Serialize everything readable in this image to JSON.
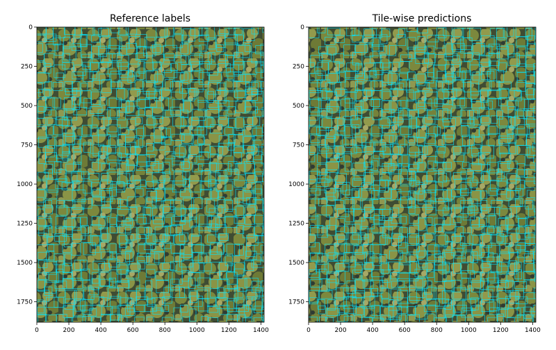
{
  "panels": [
    {
      "title": "Reference labels"
    },
    {
      "title": "Tile-wise predictions"
    }
  ],
  "axes": {
    "x_ticks": [
      0,
      200,
      400,
      600,
      800,
      1000,
      1200,
      1400
    ],
    "y_ticks": [
      0,
      250,
      500,
      750,
      1000,
      1250,
      1500,
      1750
    ],
    "x_range": [
      0,
      1420
    ],
    "y_range": [
      0,
      1880
    ],
    "y_inverted": true
  },
  "colors": {
    "box_outline": "#00e5ff",
    "canopy": "#7f8a3e",
    "shadow": "#2c3a34"
  }
}
